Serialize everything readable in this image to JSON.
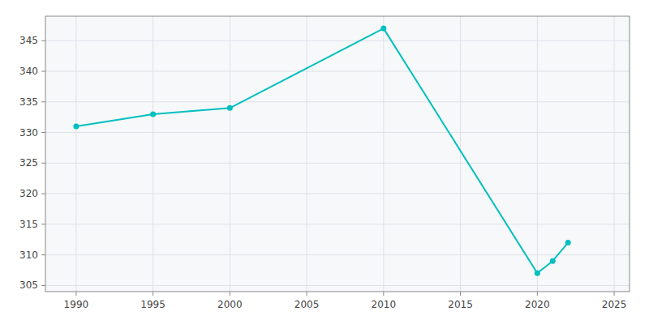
{
  "chart_data": {
    "type": "line",
    "x": [
      1990,
      1995,
      2000,
      2010,
      2020,
      2021,
      2022
    ],
    "values": [
      331,
      333,
      334,
      347,
      307,
      309,
      312
    ],
    "color": "#00BFBF",
    "marker": "circle",
    "xlim": [
      1988,
      2026
    ],
    "ylim": [
      304,
      349
    ],
    "xticks": [
      1990,
      1995,
      2000,
      2005,
      2010,
      2015,
      2020,
      2025
    ],
    "yticks": [
      305,
      310,
      315,
      320,
      325,
      330,
      335,
      340,
      345
    ],
    "grid": true
  }
}
